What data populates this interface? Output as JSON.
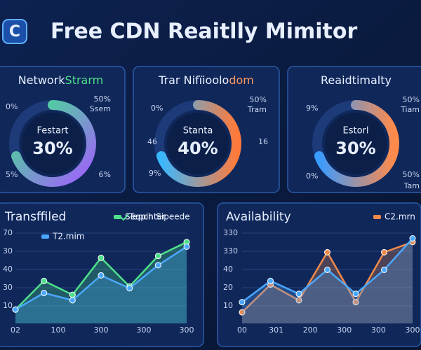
{
  "header": {
    "title": "Free CDN Reaitlly Mimitor"
  },
  "gauges": [
    {
      "title_a": "Network",
      "title_b": "Strarm",
      "center_label": "Festart",
      "center_value": "30%",
      "labels": [
        "0%",
        "50%",
        "Ssem",
        "5%",
        "6%"
      ]
    },
    {
      "title_a": "Trar Nifïioolo",
      "title_b": "dom",
      "center_label": "Stanta",
      "center_value": "40%",
      "labels": [
        "0%",
        "50%",
        "Tram",
        "46",
        "16",
        "9%"
      ]
    },
    {
      "title_a": "Reaidtimalty",
      "title_b": "",
      "center_label": "Estorl",
      "center_value": "30%",
      "labels": [
        "9%",
        "50%",
        "Tiam",
        "0%",
        "50%",
        "Tam"
      ]
    }
  ],
  "charts": [
    {
      "type": "line",
      "title": "Transffiled",
      "legend_check": "Tepch Sipeede",
      "ylim": [
        0,
        100
      ],
      "y_labels": [
        "70",
        "30",
        "40",
        "30",
        "10"
      ],
      "x_labels": [
        "02",
        "100",
        "300",
        "300",
        "300"
      ],
      "series": [
        {
          "name": "Seopinter",
          "color": "#4ee08a",
          "values": [
            15,
            46,
            31,
            71,
            40,
            73,
            88
          ]
        },
        {
          "name": "T2.mim",
          "color": "#4aa8ff",
          "values": [
            15,
            33,
            25,
            52,
            38,
            63,
            83
          ]
        }
      ]
    },
    {
      "type": "line",
      "title": "Availability",
      "ylim": [
        0,
        100
      ],
      "y_labels": [
        "330",
        "330",
        "40",
        "20",
        "10"
      ],
      "x_labels": [
        "00",
        "301",
        "200",
        "300",
        "300",
        "300"
      ],
      "series": [
        {
          "name": "C2.mrn",
          "color": "#f08a4b",
          "values": [
            12,
            42,
            25,
            77,
            23,
            77,
            88
          ]
        },
        {
          "name": "",
          "color": "#4aa8ff",
          "values": [
            23,
            46,
            32,
            58,
            32,
            58,
            92
          ]
        }
      ]
    }
  ]
}
